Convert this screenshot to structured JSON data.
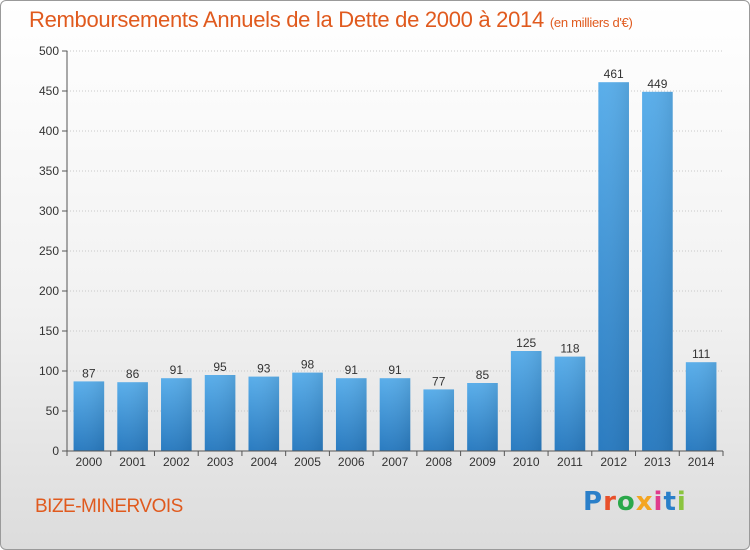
{
  "chart_data": {
    "type": "bar",
    "title": "Remboursements Annuels de la Dette de 2000 à 2014",
    "subtitle": "(en milliers d'€)",
    "categories": [
      "2000",
      "2001",
      "2002",
      "2003",
      "2004",
      "2005",
      "2006",
      "2007",
      "2008",
      "2009",
      "2010",
      "2011",
      "2012",
      "2013",
      "2014"
    ],
    "values": [
      87,
      86,
      91,
      95,
      93,
      98,
      91,
      91,
      77,
      85,
      125,
      118,
      461,
      449,
      111
    ],
    "ylim": [
      0,
      500
    ],
    "yticks": [
      0,
      50,
      100,
      150,
      200,
      250,
      300,
      350,
      400,
      450,
      500
    ],
    "grid": true,
    "bar_color": "#3a8fd8"
  },
  "location": "BIZE-MINERVOIS",
  "brand": {
    "letters": [
      "P",
      "r",
      "o",
      "x",
      "i",
      "t",
      "i"
    ]
  }
}
